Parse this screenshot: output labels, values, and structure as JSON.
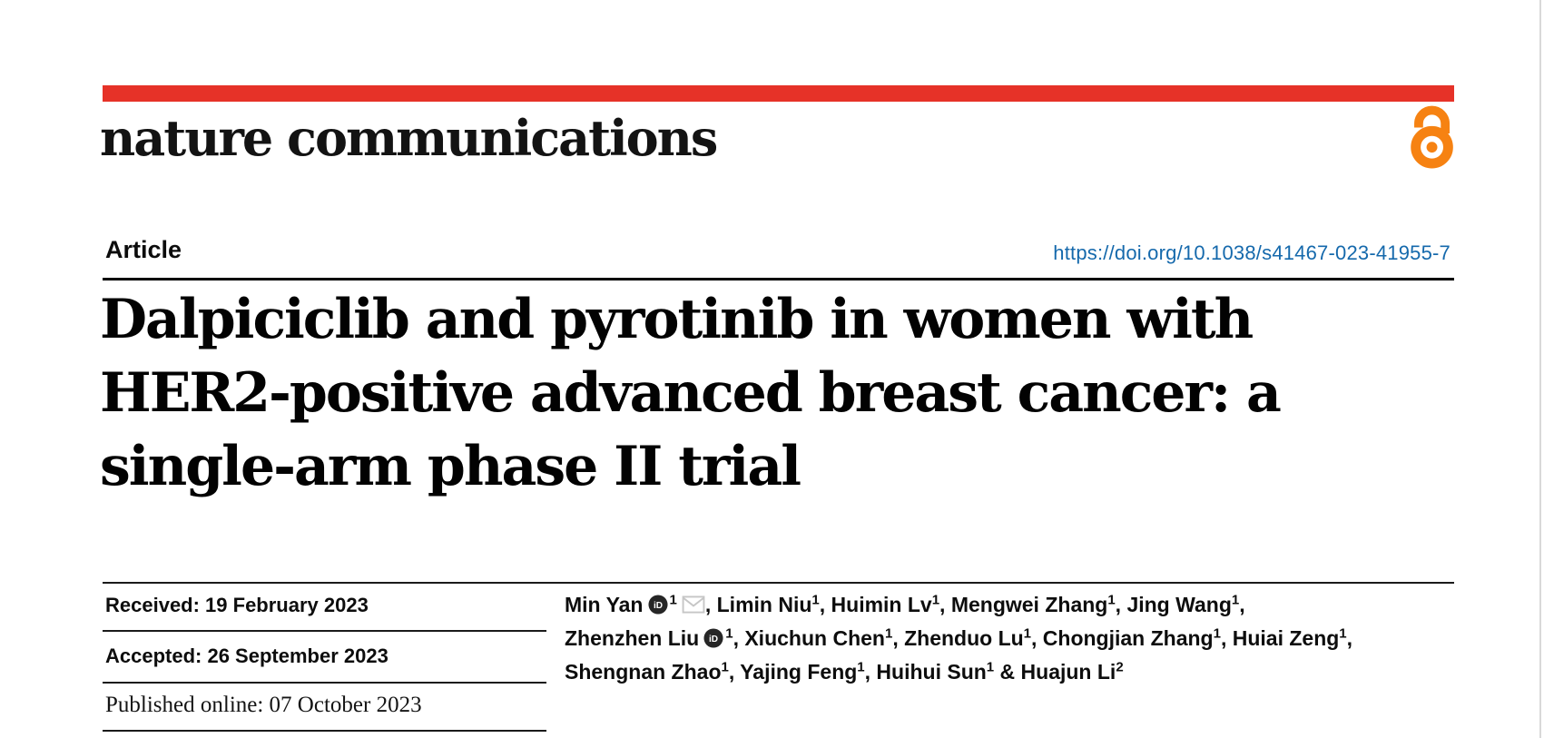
{
  "journal": {
    "name": "nature communications",
    "brand_red": "#e63228",
    "open_access_orange": "#f68212"
  },
  "article": {
    "type_label": "Article",
    "doi": "https://doi.org/10.1038/s41467-023-41955-7",
    "doi_color": "#1569ac",
    "title_lines": [
      "Dalpiciclib and pyrotinib in women with",
      "HER2-positive advanced breast cancer: a",
      "single-arm phase II trial"
    ]
  },
  "dates": {
    "received": "Received: 19 February 2023",
    "accepted": "Accepted: 26 September 2023",
    "published_online": "Published online: 07 October 2023"
  },
  "authors": {
    "lines": [
      {
        "segments": [
          {
            "text": "Min Yan",
            "orcid": true,
            "sup": "1",
            "email": true,
            "after": ", "
          },
          {
            "text": "Limin Niu",
            "sup": "1",
            "after": ", "
          },
          {
            "text": "Huimin Lv",
            "sup": "1",
            "after": ", "
          },
          {
            "text": "Mengwei Zhang",
            "sup": "1",
            "after": ", "
          },
          {
            "text": "Jing Wang",
            "sup": "1",
            "after": ","
          }
        ]
      },
      {
        "segments": [
          {
            "text": "Zhenzhen Liu",
            "orcid": true,
            "sup": "1",
            "after": ", "
          },
          {
            "text": "Xiuchun Chen",
            "sup": "1",
            "after": ", "
          },
          {
            "text": "Zhenduo Lu",
            "sup": "1",
            "after": ", "
          },
          {
            "text": "Chongjian Zhang",
            "sup": "1",
            "after": ", "
          },
          {
            "text": "Huiai Zeng",
            "sup": "1",
            "after": ","
          }
        ]
      },
      {
        "segments": [
          {
            "text": "Shengnan Zhao",
            "sup": "1",
            "after": ", "
          },
          {
            "text": "Yajing Feng",
            "sup": "1",
            "after": ", "
          },
          {
            "text": "Huihui Sun",
            "sup": "1",
            "after": " & "
          },
          {
            "text": "Huajun Li",
            "sup": "2",
            "after": ""
          }
        ]
      }
    ]
  }
}
